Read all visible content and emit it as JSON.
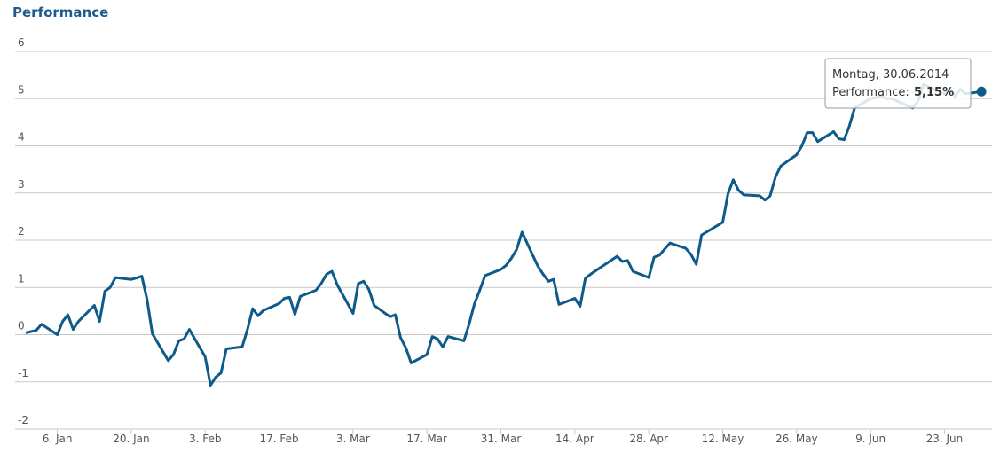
{
  "chart_data": {
    "type": "line",
    "title": "Performance",
    "color": "#0e5a8a",
    "x": [
      "2013-12-31",
      "2014-01-02",
      "2014-01-03",
      "2014-01-06",
      "2014-01-07",
      "2014-01-08",
      "2014-01-09",
      "2014-01-10",
      "2014-01-13",
      "2014-01-14",
      "2014-01-15",
      "2014-01-16",
      "2014-01-17",
      "2014-01-20",
      "2014-01-21",
      "2014-01-22",
      "2014-01-23",
      "2014-01-24",
      "2014-01-27",
      "2014-01-28",
      "2014-01-29",
      "2014-01-30",
      "2014-01-31",
      "2014-02-03",
      "2014-02-04",
      "2014-02-05",
      "2014-02-06",
      "2014-02-07",
      "2014-02-10",
      "2014-02-11",
      "2014-02-12",
      "2014-02-13",
      "2014-02-14",
      "2014-02-17",
      "2014-02-18",
      "2014-02-19",
      "2014-02-20",
      "2014-02-21",
      "2014-02-24",
      "2014-02-25",
      "2014-02-26",
      "2014-02-27",
      "2014-02-28",
      "2014-03-03",
      "2014-03-04",
      "2014-03-05",
      "2014-03-06",
      "2014-03-07",
      "2014-03-10",
      "2014-03-11",
      "2014-03-12",
      "2014-03-13",
      "2014-03-14",
      "2014-03-17",
      "2014-03-18",
      "2014-03-19",
      "2014-03-20",
      "2014-03-21",
      "2014-03-24",
      "2014-03-25",
      "2014-03-26",
      "2014-03-27",
      "2014-03-28",
      "2014-03-31",
      "2014-04-01",
      "2014-04-02",
      "2014-04-03",
      "2014-04-04",
      "2014-04-07",
      "2014-04-08",
      "2014-04-09",
      "2014-04-10",
      "2014-04-11",
      "2014-04-14",
      "2014-04-15",
      "2014-04-16",
      "2014-04-17",
      "2014-04-22",
      "2014-04-23",
      "2014-04-24",
      "2014-04-25",
      "2014-04-28",
      "2014-04-29",
      "2014-04-30",
      "2014-05-02",
      "2014-05-05",
      "2014-05-06",
      "2014-05-07",
      "2014-05-08",
      "2014-05-12",
      "2014-05-13",
      "2014-05-14",
      "2014-05-15",
      "2014-05-16",
      "2014-05-19",
      "2014-05-20",
      "2014-05-21",
      "2014-05-22",
      "2014-05-23",
      "2014-05-26",
      "2014-05-27",
      "2014-05-28",
      "2014-05-29",
      "2014-05-30",
      "2014-06-02",
      "2014-06-03",
      "2014-06-04",
      "2014-06-05",
      "2014-06-06",
      "2014-06-09",
      "2014-06-10",
      "2014-06-11",
      "2014-06-12",
      "2014-06-13",
      "2014-06-16",
      "2014-06-17",
      "2014-06-18",
      "2014-06-19",
      "2014-06-20",
      "2014-06-23",
      "2014-06-24",
      "2014-06-25",
      "2014-06-26",
      "2014-06-27",
      "2014-06-30"
    ],
    "values": [
      0.04,
      0.09,
      0.22,
      0.0,
      0.28,
      0.42,
      0.11,
      0.28,
      0.62,
      0.28,
      0.92,
      1.0,
      1.21,
      1.17,
      1.2,
      1.24,
      0.74,
      0.02,
      -0.55,
      -0.42,
      -0.13,
      -0.09,
      0.11,
      -0.47,
      -1.07,
      -0.9,
      -0.81,
      -0.3,
      -0.26,
      0.11,
      0.55,
      0.4,
      0.51,
      0.66,
      0.77,
      0.79,
      0.43,
      0.81,
      0.94,
      1.09,
      1.28,
      1.34,
      1.06,
      0.45,
      1.08,
      1.13,
      0.96,
      0.62,
      0.38,
      0.42,
      -0.06,
      -0.28,
      -0.6,
      -0.42,
      -0.04,
      -0.09,
      -0.26,
      -0.04,
      -0.13,
      0.23,
      0.66,
      0.94,
      1.25,
      1.38,
      1.47,
      1.62,
      1.81,
      2.17,
      1.45,
      1.28,
      1.13,
      1.17,
      0.64,
      0.77,
      0.6,
      1.19,
      1.28,
      1.66,
      1.55,
      1.57,
      1.34,
      1.21,
      1.64,
      1.68,
      1.94,
      1.83,
      1.7,
      1.49,
      2.11,
      2.38,
      2.98,
      3.28,
      3.06,
      2.96,
      2.94,
      2.85,
      2.94,
      3.34,
      3.57,
      3.81,
      4.0,
      4.28,
      4.28,
      4.09,
      4.3,
      4.15,
      4.13,
      4.42,
      4.81,
      5.0,
      5.02,
      5.06,
      5.0,
      5.0,
      4.85,
      4.8,
      4.95,
      5.3,
      5.25,
      5.1,
      5.2,
      5.05,
      5.2,
      5.1,
      5.15
    ],
    "xlim": [
      "2013-12-29",
      "2014-07-02"
    ],
    "xticks": [
      {
        "value": "2014-01-06",
        "label": "6. Jan"
      },
      {
        "value": "2014-01-20",
        "label": "20. Jan"
      },
      {
        "value": "2014-02-03",
        "label": "3. Feb"
      },
      {
        "value": "2014-02-17",
        "label": "17. Feb"
      },
      {
        "value": "2014-03-03",
        "label": "3. Mar"
      },
      {
        "value": "2014-03-17",
        "label": "17. Mar"
      },
      {
        "value": "2014-03-31",
        "label": "31. Mar"
      },
      {
        "value": "2014-04-14",
        "label": "14. Apr"
      },
      {
        "value": "2014-04-28",
        "label": "28. Apr"
      },
      {
        "value": "2014-05-12",
        "label": "12. May"
      },
      {
        "value": "2014-05-26",
        "label": "26. May"
      },
      {
        "value": "2014-06-09",
        "label": "9. Jun"
      },
      {
        "value": "2014-06-23",
        "label": "23. Jun"
      }
    ],
    "ylim": [
      -2,
      6
    ],
    "yticks": [
      -2,
      -1,
      0,
      1,
      2,
      3,
      4,
      5,
      6
    ],
    "grid": true,
    "tooltip": {
      "title": "Montag, 30.06.2014",
      "label": "Performance:",
      "value_label": "5,15%"
    }
  }
}
